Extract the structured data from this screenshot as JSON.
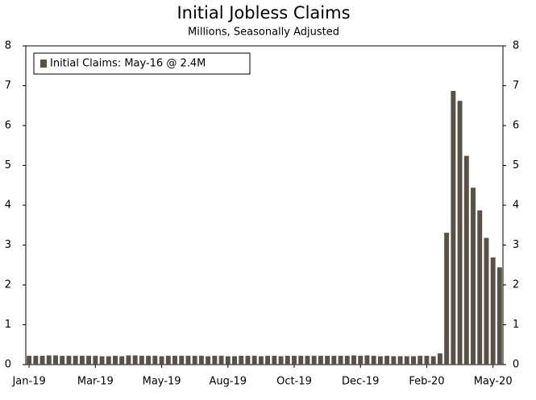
{
  "chart_data": {
    "type": "bar",
    "title": "Initial Jobless Claims",
    "subtitle": "Millions, Seasonally Adjusted",
    "legend": "Initial Claims: May-16 @ 2.4M",
    "legend_position": "upper left",
    "color": "#5a5043",
    "categories": [
      "Jan-19",
      null,
      null,
      null,
      null,
      null,
      null,
      null,
      null,
      null,
      "Mar-19",
      null,
      null,
      null,
      null,
      null,
      null,
      null,
      null,
      null,
      "May-19",
      null,
      null,
      null,
      null,
      null,
      null,
      null,
      null,
      null,
      "Aug-19",
      null,
      null,
      null,
      null,
      null,
      null,
      null,
      null,
      null,
      "Oct-19",
      null,
      null,
      null,
      null,
      null,
      null,
      null,
      null,
      null,
      "Dec-19",
      null,
      null,
      null,
      null,
      null,
      null,
      null,
      null,
      null,
      "Feb-20",
      null,
      null,
      null,
      null,
      null,
      null,
      null,
      null,
      null,
      "May-20",
      null
    ],
    "values": [
      0.22,
      0.22,
      0.22,
      0.23,
      0.23,
      0.22,
      0.22,
      0.22,
      0.22,
      0.22,
      0.22,
      0.21,
      0.21,
      0.22,
      0.21,
      0.23,
      0.23,
      0.22,
      0.22,
      0.22,
      0.21,
      0.22,
      0.22,
      0.22,
      0.22,
      0.22,
      0.22,
      0.21,
      0.22,
      0.22,
      0.21,
      0.21,
      0.22,
      0.22,
      0.22,
      0.21,
      0.22,
      0.22,
      0.21,
      0.22,
      0.22,
      0.22,
      0.22,
      0.22,
      0.22,
      0.22,
      0.22,
      0.22,
      0.22,
      0.23,
      0.22,
      0.23,
      0.22,
      0.21,
      0.22,
      0.21,
      0.21,
      0.21,
      0.21,
      0.22,
      0.22,
      0.21,
      0.28,
      3.31,
      6.87,
      6.62,
      5.24,
      4.44,
      3.87,
      3.18,
      2.69,
      2.44
    ],
    "ylim": [
      0,
      8
    ],
    "yticks": [
      0,
      1,
      2,
      3,
      4,
      5,
      6,
      7,
      8
    ],
    "y2lim": [
      0,
      8
    ],
    "y2ticks": [
      0,
      1,
      2,
      3,
      4,
      5,
      6,
      7,
      8
    ]
  }
}
